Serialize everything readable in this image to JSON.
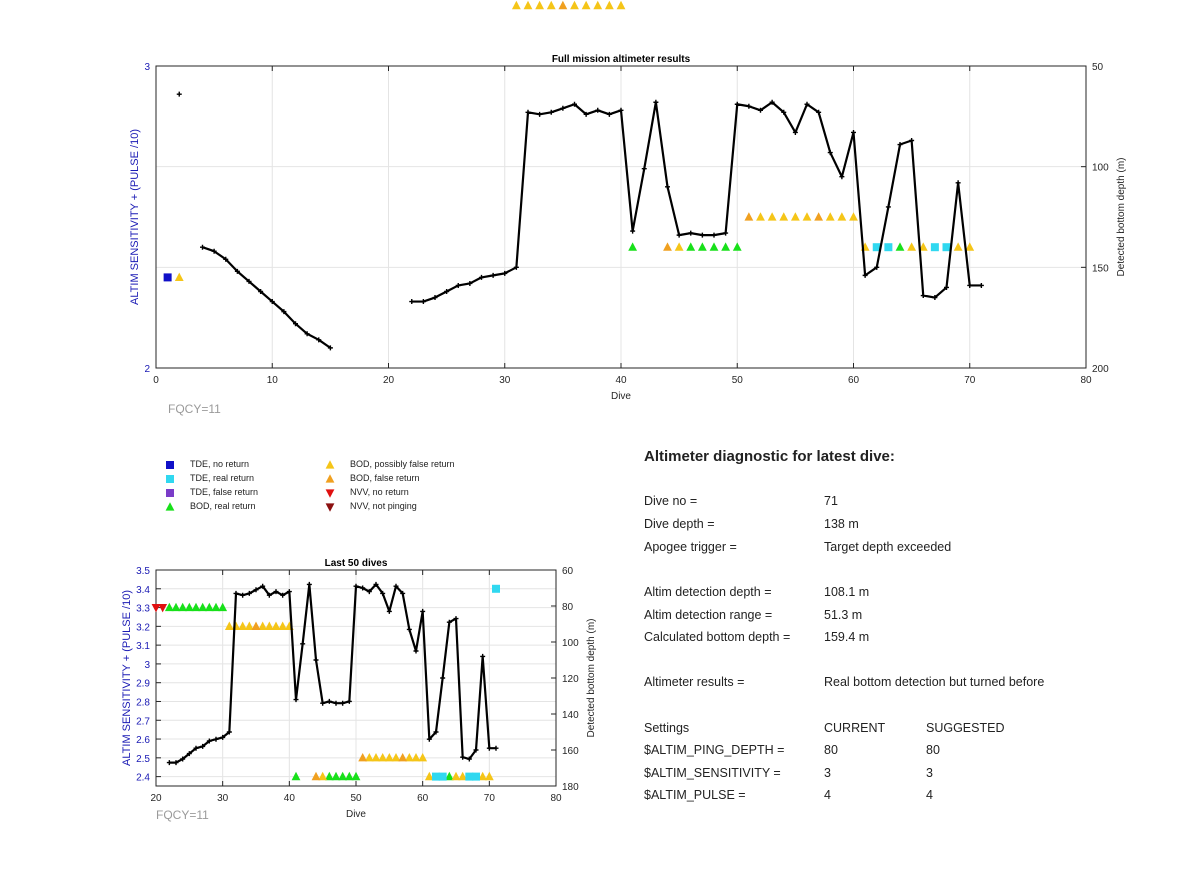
{
  "colors": {
    "tde_no_return": "#1010c8",
    "tde_real_return": "#30d8f0",
    "tde_false_return": "#7a3cc8",
    "bod_real_return": "#18e01a",
    "bod_possibly_false": "#f5c518",
    "bod_false_return": "#f0a020",
    "nvv_no_return": "#e01010",
    "nvv_not_pinging": "#8b1010",
    "depth_line": "#000000",
    "left_axis_text": "#1a1ab4"
  },
  "legend": [
    {
      "key": "tde_no_return",
      "label": "TDE, no return",
      "marker": "square"
    },
    {
      "key": "tde_real_return",
      "label": "TDE, real return",
      "marker": "square"
    },
    {
      "key": "tde_false_return",
      "label": "TDE, false return",
      "marker": "square"
    },
    {
      "key": "bod_real_return",
      "label": "BOD, real return",
      "marker": "triangle-up"
    },
    {
      "key": "bod_possibly_false",
      "label": "BOD, possibly false return",
      "marker": "triangle-up"
    },
    {
      "key": "bod_false_return",
      "label": "BOD, false return",
      "marker": "triangle-up"
    },
    {
      "key": "nvv_no_return",
      "label": "NVV, no return",
      "marker": "triangle-down"
    },
    {
      "key": "nvv_not_pinging",
      "label": "NVV, not pinging",
      "marker": "triangle-down"
    }
  ],
  "fqcy_top": "FQCY=11",
  "fqcy_bottom": "FQCY=11",
  "diagnostic": {
    "title": "Altimeter diagnostic for latest dive:",
    "rows": [
      {
        "label": "Dive no =",
        "value": "71"
      },
      {
        "label": "Dive depth =",
        "value": "138 m"
      },
      {
        "label": "Apogee trigger =",
        "value": "Target depth exceeded"
      },
      {
        "label": "Altim detection depth =",
        "value": "108.1 m"
      },
      {
        "label": "Altim detection range =",
        "value": "51.3 m"
      },
      {
        "label": "Calculated bottom depth =",
        "value": "159.4 m"
      },
      {
        "label": "Altimeter results =",
        "value": "Real bottom detection but turned before"
      }
    ],
    "settings_header": {
      "label": "Settings",
      "current": "CURRENT",
      "suggested": "SUGGESTED"
    },
    "settings": [
      {
        "label": "$ALTIM_PING_DEPTH =",
        "current": "80",
        "suggested": "80"
      },
      {
        "label": "$ALTIM_SENSITIVITY =",
        "current": "3",
        "suggested": "3"
      },
      {
        "label": "$ALTIM_PULSE =",
        "current": "4",
        "suggested": "4"
      }
    ]
  },
  "chart_data": [
    {
      "type": "line",
      "title": "Full mission altimeter results",
      "xlabel": "Dive",
      "ylabel": "ALTIM SENSITIVITY + (PULSE /10)",
      "y2label": "Detected bottom depth (m)",
      "xlim": [
        0,
        80
      ],
      "ylim": [
        2,
        3
      ],
      "y2lim": [
        50,
        200
      ],
      "y2_reversed": true,
      "xticks": [
        0,
        10,
        20,
        30,
        40,
        50,
        60,
        70,
        80
      ],
      "yticks": [
        2,
        3
      ],
      "y2ticks": [
        50,
        100,
        150,
        200
      ],
      "grid": true,
      "depth_series": [
        {
          "x": [
            2
          ],
          "y": [
            64
          ]
        },
        {
          "x": [
            4,
            5,
            6,
            7,
            8,
            9,
            10,
            11,
            12,
            13,
            14,
            15
          ],
          "y": [
            140,
            142,
            146,
            152,
            157,
            162,
            167,
            172,
            178,
            183,
            186,
            190
          ]
        },
        {
          "x": [
            22,
            23,
            24,
            25,
            26,
            27,
            28,
            29,
            30,
            31,
            32,
            33,
            34,
            35,
            36,
            37,
            38,
            39,
            40,
            41,
            42,
            43,
            44,
            45,
            46,
            47,
            48,
            49,
            50,
            51,
            52,
            53,
            54,
            55,
            56,
            57,
            58,
            59,
            60,
            61,
            62,
            63,
            64,
            65,
            66,
            67,
            68,
            69,
            70,
            71
          ],
          "y": [
            167,
            167,
            165,
            162,
            159,
            158,
            155,
            154,
            153,
            150,
            73,
            74,
            73,
            71,
            69,
            74,
            72,
            74,
            72,
            132,
            101,
            68,
            110,
            134,
            133,
            134,
            134,
            133,
            69,
            70,
            72,
            68,
            73,
            83,
            69,
            73,
            93,
            105,
            83,
            154,
            150,
            120,
            89,
            87,
            164,
            165,
            160,
            108,
            159,
            159
          ]
        }
      ],
      "markers": [
        {
          "key": "tde_no_return",
          "points": [
            [
              1,
              2.3
            ],
            [
              3,
              3.31
            ]
          ]
        },
        {
          "key": "tde_real_return",
          "points": [
            [
              4,
              3.31
            ],
            [
              5,
              3.31
            ],
            [
              71,
              3.41
            ],
            [
              62,
              2.4
            ],
            [
              63,
              2.4
            ],
            [
              67,
              2.4
            ],
            [
              68,
              2.4
            ]
          ]
        },
        {
          "key": "bod_possibly_false",
          "points": [
            [
              2,
              2.3
            ],
            [
              31,
              3.2
            ],
            [
              32,
              3.2
            ],
            [
              33,
              3.2
            ],
            [
              34,
              3.2
            ],
            [
              36,
              3.2
            ],
            [
              37,
              3.2
            ],
            [
              38,
              3.2
            ],
            [
              39,
              3.2
            ],
            [
              40,
              3.2
            ],
            [
              45,
              2.4
            ],
            [
              52,
              2.5
            ],
            [
              53,
              2.5
            ],
            [
              54,
              2.5
            ],
            [
              55,
              2.5
            ],
            [
              56,
              2.5
            ],
            [
              58,
              2.5
            ],
            [
              59,
              2.5
            ],
            [
              60,
              2.5
            ],
            [
              61,
              2.4
            ],
            [
              65,
              2.4
            ],
            [
              66,
              2.4
            ],
            [
              69,
              2.4
            ],
            [
              70,
              2.4
            ]
          ]
        },
        {
          "key": "bod_false_return",
          "points": [
            [
              35,
              3.2
            ],
            [
              44,
              2.4
            ],
            [
              51,
              2.5
            ],
            [
              57,
              2.5
            ]
          ]
        },
        {
          "key": "bod_real_return",
          "points": [
            [
              6,
              3.31
            ],
            [
              7,
              3.31
            ],
            [
              8,
              3.31
            ],
            [
              9,
              3.31
            ],
            [
              10,
              3.31
            ],
            [
              11,
              3.31
            ],
            [
              12,
              3.31
            ],
            [
              13,
              3.31
            ],
            [
              14,
              3.31
            ],
            [
              15,
              3.31
            ],
            [
              22,
              3.31
            ],
            [
              23,
              3.31
            ],
            [
              24,
              3.31
            ],
            [
              25,
              3.31
            ],
            [
              26,
              3.31
            ],
            [
              27,
              3.31
            ],
            [
              28,
              3.31
            ],
            [
              29,
              3.31
            ],
            [
              30,
              3.31
            ],
            [
              41,
              2.4
            ],
            [
              46,
              2.4
            ],
            [
              47,
              2.4
            ],
            [
              48,
              2.4
            ],
            [
              49,
              2.4
            ],
            [
              50,
              2.4
            ],
            [
              64,
              2.4
            ]
          ]
        },
        {
          "key": "nvv_no_return",
          "points": [
            [
              16,
              3.31
            ],
            [
              17,
              3.31
            ],
            [
              18,
              3.31
            ],
            [
              19,
              3.31
            ],
            [
              20,
              3.31
            ],
            [
              21,
              3.31
            ]
          ]
        }
      ]
    },
    {
      "type": "line",
      "title": "Last 50 dives",
      "xlabel": "Dive",
      "ylabel": "ALTIM SENSITIVITY + (PULSE /10)",
      "y2label": "Detected bottom depth (m)",
      "xlim": [
        20,
        80
      ],
      "ylim": [
        2.35,
        3.5
      ],
      "y2lim": [
        60,
        180
      ],
      "y2_reversed": true,
      "xticks": [
        20,
        30,
        40,
        50,
        60,
        70,
        80
      ],
      "yticks": [
        2.4,
        2.5,
        2.6,
        2.7,
        2.8,
        2.9,
        3,
        3.1,
        3.2,
        3.3,
        3.4,
        3.5
      ],
      "ytick_labels": [
        "2.4",
        "2.5",
        "2.6",
        "2.7",
        "2.8",
        "2.9",
        "3",
        "3.1",
        "3.2",
        "3.3",
        "3.4",
        "3.5"
      ],
      "y2ticks": [
        60,
        80,
        100,
        120,
        140,
        160,
        180
      ],
      "grid": true,
      "depth_series": [
        {
          "x": [
            22,
            23,
            24,
            25,
            26,
            27,
            28,
            29,
            30,
            31,
            32,
            33,
            34,
            35,
            36,
            37,
            38,
            39,
            40,
            41,
            42,
            43,
            44,
            45,
            46,
            47,
            48,
            49,
            50,
            51,
            52,
            53,
            54,
            55,
            56,
            57,
            58,
            59,
            60,
            61,
            62,
            63,
            64,
            65,
            66,
            67,
            68,
            69,
            70,
            71
          ],
          "y": [
            167,
            167,
            165,
            162,
            159,
            158,
            155,
            154,
            153,
            150,
            73,
            74,
            73,
            71,
            69,
            74,
            72,
            74,
            72,
            132,
            101,
            68,
            110,
            134,
            133,
            134,
            134,
            133,
            69,
            70,
            72,
            68,
            73,
            83,
            69,
            73,
            93,
            105,
            83,
            154,
            150,
            120,
            89,
            87,
            164,
            165,
            160,
            108,
            159,
            159
          ]
        }
      ],
      "markers": [
        {
          "key": "nvv_no_return",
          "points": [
            [
              20,
              3.3
            ],
            [
              21,
              3.3
            ]
          ]
        },
        {
          "key": "bod_real_return",
          "points": [
            [
              22,
              3.3
            ],
            [
              23,
              3.3
            ],
            [
              24,
              3.3
            ],
            [
              25,
              3.3
            ],
            [
              26,
              3.3
            ],
            [
              27,
              3.3
            ],
            [
              28,
              3.3
            ],
            [
              29,
              3.3
            ],
            [
              30,
              3.3
            ],
            [
              41,
              2.4
            ],
            [
              46,
              2.4
            ],
            [
              47,
              2.4
            ],
            [
              48,
              2.4
            ],
            [
              49,
              2.4
            ],
            [
              50,
              2.4
            ],
            [
              64,
              2.4
            ]
          ]
        },
        {
          "key": "bod_possibly_false",
          "points": [
            [
              31,
              3.2
            ],
            [
              32,
              3.2
            ],
            [
              33,
              3.2
            ],
            [
              34,
              3.2
            ],
            [
              36,
              3.2
            ],
            [
              37,
              3.2
            ],
            [
              38,
              3.2
            ],
            [
              39,
              3.2
            ],
            [
              40,
              3.2
            ],
            [
              45,
              2.4
            ],
            [
              52,
              2.5
            ],
            [
              53,
              2.5
            ],
            [
              54,
              2.5
            ],
            [
              55,
              2.5
            ],
            [
              56,
              2.5
            ],
            [
              58,
              2.5
            ],
            [
              59,
              2.5
            ],
            [
              60,
              2.5
            ],
            [
              61,
              2.4
            ],
            [
              65,
              2.4
            ],
            [
              66,
              2.4
            ],
            [
              69,
              2.4
            ],
            [
              70,
              2.4
            ]
          ]
        },
        {
          "key": "bod_false_return",
          "points": [
            [
              35,
              3.2
            ],
            [
              44,
              2.4
            ],
            [
              51,
              2.5
            ],
            [
              57,
              2.5
            ]
          ]
        },
        {
          "key": "tde_real_return",
          "points": [
            [
              62,
              2.4
            ],
            [
              63,
              2.4
            ],
            [
              67,
              2.4
            ],
            [
              68,
              2.4
            ],
            [
              71,
              3.4
            ]
          ]
        }
      ]
    }
  ]
}
